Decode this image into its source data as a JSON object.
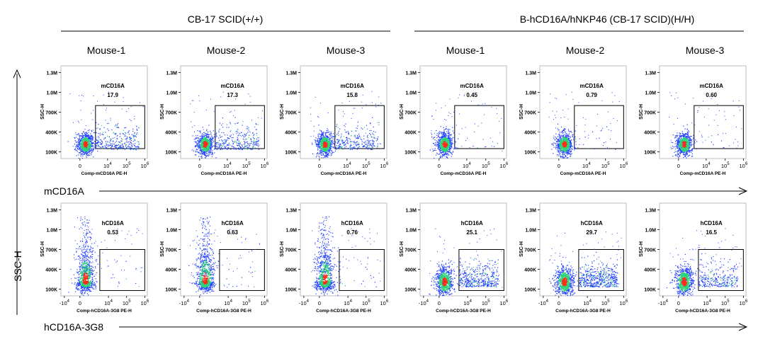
{
  "groups": [
    {
      "title": "CB-17 SCID(+/+)",
      "mice": [
        "Mouse-1",
        "Mouse-2",
        "Mouse-3"
      ]
    },
    {
      "title": "B-hCD16A/hNKP46 (CB-17 SCID)(H/H)",
      "mice": [
        "Mouse-1",
        "Mouse-2",
        "Mouse-3"
      ]
    }
  ],
  "y_axis_label": "SSC-H",
  "colors": {
    "density_low": "#1f3dff",
    "density_mid": "#2fd37a",
    "density_high": "#ff2a1a",
    "text": "#000000"
  },
  "chart_data": [
    {
      "type": "scatter",
      "row_label": "mCD16A",
      "xlabel": "Comp-mCD16A PE-H",
      "ylabel": "SSC-H",
      "x_ticks": [
        "0",
        "10^4",
        "10^5",
        "10^6"
      ],
      "y_ticks": [
        "100K",
        "400K",
        "700K",
        "1.0M",
        "1.3M"
      ],
      "gate_name": "mCD16A",
      "gate_values": [
        "17.9",
        "17.3",
        "15.8",
        "0.45",
        "0.79",
        "0.60"
      ]
    },
    {
      "type": "scatter",
      "row_label": "hCD16A-3G8",
      "xlabel": "Comp-hCD16A-3G8 PE-H",
      "ylabel": "SSC-H",
      "x_ticks": [
        "-10^4",
        "0",
        "10^4",
        "10^5",
        "10^6"
      ],
      "y_ticks": [
        "100K",
        "400K",
        "700K",
        "1.0M",
        "1.3M"
      ],
      "gate_name": "hCD16A",
      "gate_values": [
        "0.53",
        "0.63",
        "0.76",
        "25.1",
        "29.7",
        "16.5"
      ]
    }
  ]
}
